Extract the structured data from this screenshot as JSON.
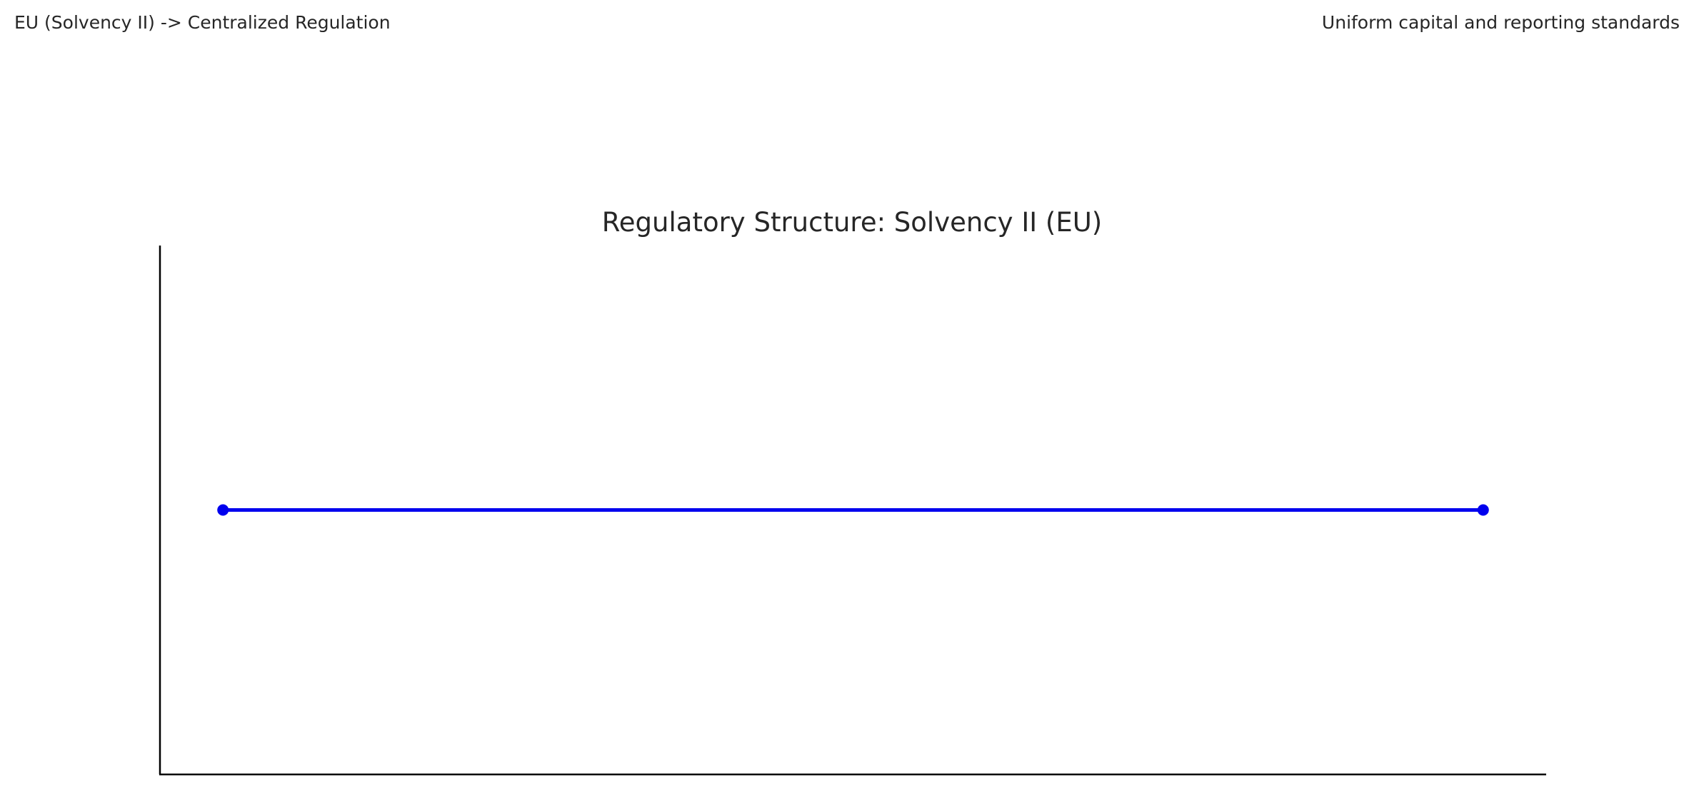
{
  "header": {
    "left_text": "EU (Solvency II) -> Centralized Regulation",
    "right_text": "Uniform capital and reporting standards"
  },
  "chart_data": {
    "type": "line",
    "title": "Regulatory Structure: Solvency II (EU)",
    "xlabel": "",
    "ylabel": "",
    "grid": false,
    "x_ticks_shown": false,
    "y_ticks_shown": false,
    "series": [
      {
        "color": "#0000ee",
        "marker": "circle",
        "points": [
          {
            "x": 0,
            "y": 0.5
          },
          {
            "x": 1,
            "y": 0.5
          }
        ]
      }
    ],
    "xlim": [
      -0.05,
      1.05
    ],
    "ylim": [
      0,
      1
    ]
  }
}
